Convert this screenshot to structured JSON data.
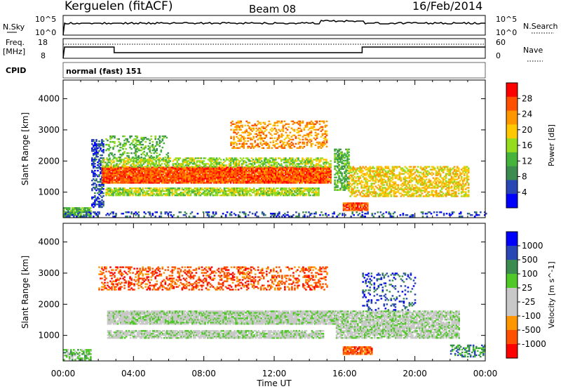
{
  "header": {
    "station": "Kerguelen (fitACF)",
    "beam": "Beam 08",
    "date": "16/Feb/2014"
  },
  "sky_panel": {
    "left_label": "N.Sky",
    "left_ticks": [
      "10^5",
      "10^0"
    ],
    "right_label": "N.Search",
    "right_ticks": [
      "10^5",
      "10^0"
    ]
  },
  "freq_panel": {
    "left_label_line1": "Freq.",
    "left_label_line2": "[MHz]",
    "left_ticks": [
      "18",
      "8"
    ],
    "right_label": "Nave",
    "right_ticks": [
      "60",
      "0"
    ]
  },
  "cpid": {
    "label": "CPID",
    "text": "normal (fast) 151"
  },
  "colors": {
    "power_scale": [
      "#0000ff",
      "#2846b4",
      "#3c8c50",
      "#46b43c",
      "#96dc1e",
      "#ffc800",
      "#ff9600",
      "#ff5000",
      "#ff0000"
    ],
    "velocity_scale": [
      "#ff0000",
      "#ff5000",
      "#ff9600",
      "#c8c8c8",
      "#c8c8c8",
      "#50c828",
      "#3c8c50",
      "#2846b4",
      "#0000ff"
    ],
    "ground_scatter": "#c8c8c8"
  },
  "chart_data": [
    {
      "type": "heatmap",
      "title": "Power",
      "ylabel": "Slant Range [km]",
      "xlabel": "Time UT",
      "x_ticks": [
        "00:00",
        "04:00",
        "08:00",
        "12:00",
        "16:00",
        "20:00",
        "00:00"
      ],
      "x_range_hours": [
        0,
        24
      ],
      "y_ticks": [
        1000,
        2000,
        3000,
        4000
      ],
      "ylim": [
        180,
        4600
      ],
      "colorbar": {
        "label": "Power [dB]",
        "ticks": [
          4,
          8,
          12,
          16,
          20,
          24,
          28
        ]
      },
      "regions": [
        {
          "t0": 0.0,
          "t1": 1.6,
          "r0": 200,
          "r1": 500,
          "level": 3,
          "density": 0.8
        },
        {
          "t0": 1.6,
          "t1": 2.3,
          "r0": 500,
          "r1": 2700,
          "level": 1,
          "density": 0.5
        },
        {
          "t0": 2.2,
          "t1": 15.2,
          "r0": 1280,
          "r1": 1800,
          "level": 7,
          "density": 0.95
        },
        {
          "t0": 2.2,
          "t1": 15.2,
          "r0": 1800,
          "r1": 2100,
          "level": 4,
          "density": 0.6
        },
        {
          "t0": 2.4,
          "t1": 14.5,
          "r0": 880,
          "r1": 1120,
          "level": 4,
          "density": 0.75
        },
        {
          "t0": 2.4,
          "t1": 6.0,
          "r0": 2100,
          "r1": 2800,
          "level": 3,
          "density": 0.3
        },
        {
          "t0": 9.5,
          "t1": 15.0,
          "r0": 2400,
          "r1": 3300,
          "level": 6,
          "density": 0.35
        },
        {
          "t0": 15.4,
          "t1": 16.2,
          "r0": 1050,
          "r1": 2400,
          "level": 3,
          "density": 0.6
        },
        {
          "t0": 15.9,
          "t1": 17.3,
          "r0": 400,
          "r1": 650,
          "level": 7,
          "density": 0.9
        },
        {
          "t0": 16.2,
          "t1": 23.0,
          "r0": 850,
          "r1": 1800,
          "level": 5,
          "density": 0.55
        },
        {
          "t0": 0.0,
          "t1": 24.0,
          "r0": 200,
          "r1": 360,
          "level": 1,
          "density": 0.25
        }
      ]
    },
    {
      "type": "heatmap",
      "title": "Velocity",
      "ylabel": "Slant Range [km]",
      "xlabel": "Time UT",
      "x_ticks": [
        "00:00",
        "04:00",
        "08:00",
        "12:00",
        "16:00",
        "20:00",
        "00:00"
      ],
      "x_range_hours": [
        0,
        24
      ],
      "y_ticks": [
        1000,
        2000,
        3000,
        4000
      ],
      "ylim": [
        180,
        4600
      ],
      "colorbar": {
        "label": "Velocity [m s^-1]",
        "ticks": [
          1000,
          500,
          100,
          25,
          -25,
          -100,
          -500,
          -1000
        ]
      },
      "regions": [
        {
          "t0": 0.0,
          "t1": 1.6,
          "r0": 200,
          "r1": 550,
          "level": 5,
          "density": 0.6
        },
        {
          "t0": 2.5,
          "t1": 15.5,
          "r0": 1350,
          "r1": 1800,
          "level": 4,
          "density": 0.9
        },
        {
          "t0": 2.5,
          "t1": 14.8,
          "r0": 900,
          "r1": 1150,
          "level": 4,
          "density": 0.8
        },
        {
          "t0": 2.0,
          "t1": 15.0,
          "r0": 2450,
          "r1": 3200,
          "level": 1,
          "density": 0.35
        },
        {
          "t0": 15.5,
          "t1": 22.5,
          "r0": 900,
          "r1": 1800,
          "level": 4,
          "density": 0.8
        },
        {
          "t0": 15.9,
          "t1": 17.5,
          "r0": 380,
          "r1": 620,
          "level": 1,
          "density": 0.9
        },
        {
          "t0": 17.0,
          "t1": 20.0,
          "r0": 1800,
          "r1": 3000,
          "level": 7,
          "density": 0.2
        },
        {
          "t0": 22.0,
          "t1": 24.0,
          "r0": 300,
          "r1": 700,
          "level": 6,
          "density": 0.4
        }
      ]
    }
  ]
}
